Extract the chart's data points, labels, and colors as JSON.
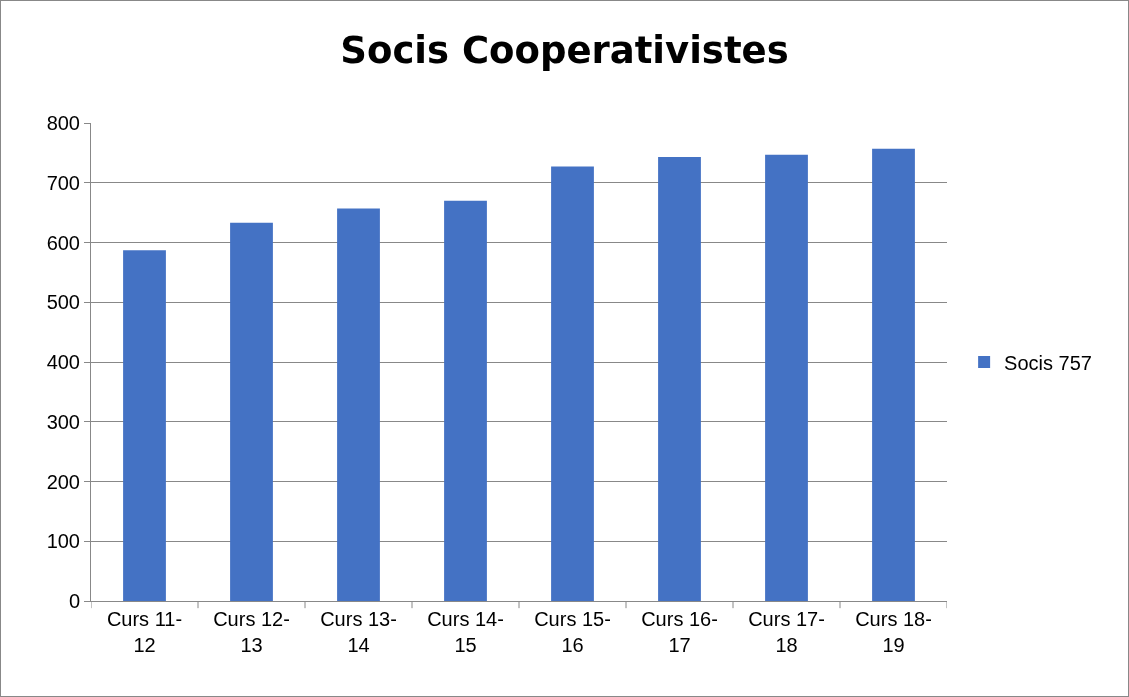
{
  "chart_data": {
    "type": "bar",
    "title": "Socis Cooperativistes",
    "categories": [
      "Curs 11-12",
      "Curs 12-13",
      "Curs 13-14",
      "Curs 14-15",
      "Curs 15-16",
      "Curs 16-17",
      "Curs 17-18",
      "Curs 18-19"
    ],
    "series": [
      {
        "name": "Socis 757",
        "color": "#4472c4",
        "values": [
          587,
          633,
          657,
          670,
          727,
          743,
          747,
          757
        ]
      }
    ],
    "ylim": [
      0,
      800
    ],
    "yticks": [
      0,
      100,
      200,
      300,
      400,
      500,
      600,
      700,
      800
    ],
    "grid": "y",
    "legend": "right"
  }
}
